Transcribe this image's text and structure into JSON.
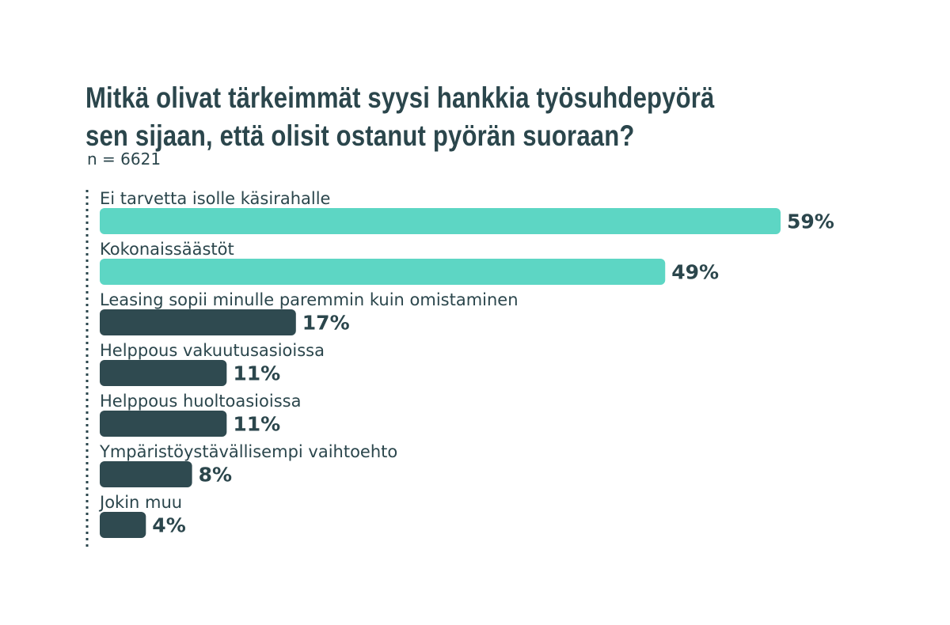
{
  "title_lines": [
    "Mitkä olivat tärkeimmät syysi hankkia työsuhdepyörä",
    "sen sijaan, että olisit ostanut pyörän suoraan?"
  ],
  "subtitle": "n = 6621",
  "colors": {
    "highlight": "#5dd6c4",
    "base": "#2f4a50",
    "text": "#2b464c"
  },
  "chart_data": {
    "type": "bar",
    "orientation": "horizontal",
    "title": "Mitkä olivat tärkeimmät syysi hankkia työsuhdepyörä sen sijaan, että olisit ostanut pyörän suoraan?",
    "subtitle": "n = 6621",
    "categories": [
      "Ei tarvetta isolle käsirahalle",
      "Kokonaissäästöt",
      "Leasing sopii minulle paremmin kuin omistaminen",
      "Helppous vakuutusasioissa",
      "Helppous huoltoasioissa",
      "Ympäristöystävällisempi vaihtoehto",
      "Jokin muu"
    ],
    "values": [
      59,
      49,
      17,
      11,
      11,
      8,
      4
    ],
    "value_labels": [
      "59%",
      "49%",
      "17%",
      "11%",
      "11%",
      "8%",
      "4%"
    ],
    "highlighted": [
      true,
      true,
      false,
      false,
      false,
      false,
      false
    ],
    "unit": "%",
    "xlim": [
      0,
      59
    ],
    "grid": false,
    "legend": "none"
  }
}
